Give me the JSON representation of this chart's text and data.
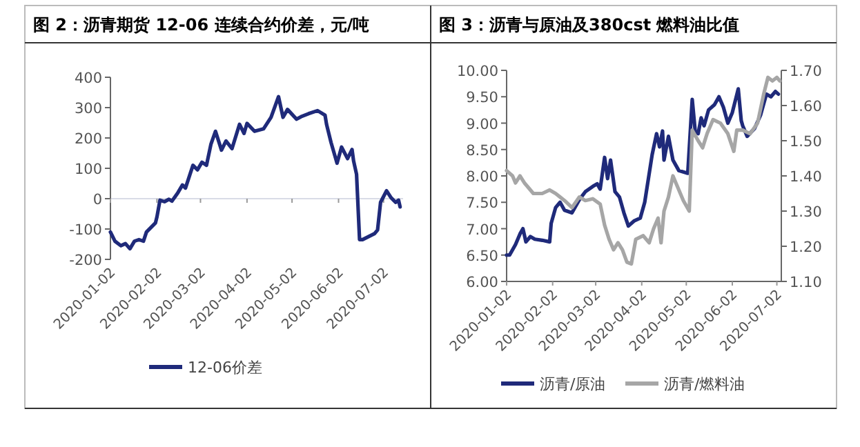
{
  "chart_data": [
    {
      "type": "line",
      "title": "图 2：沥青期货 12-06 连续合约价差，元/吨",
      "legend": "bottom",
      "xlim": [
        "2020-01-02",
        "2020-07-15"
      ],
      "xticks": [
        "2020-01-02",
        "2020-02-02",
        "2020-03-02",
        "2020-04-02",
        "2020-05-02",
        "2020-06-02",
        "2020-07-02"
      ],
      "ylim": [
        -200,
        400
      ],
      "yticks": [
        -200,
        -100,
        0,
        100,
        200,
        300,
        400
      ],
      "ref_lines": [
        {
          "axis": "y",
          "value": 0,
          "color": "#d9dce6"
        }
      ],
      "series": [
        {
          "name": "12-06价差",
          "color": "#1f2a7a",
          "x": [
            "2020-01-02",
            "2020-01-05",
            "2020-01-09",
            "2020-01-12",
            "2020-01-15",
            "2020-01-18",
            "2020-01-21",
            "2020-01-24",
            "2020-01-26",
            "2020-02-01",
            "2020-02-02",
            "2020-02-04",
            "2020-02-07",
            "2020-02-10",
            "2020-02-12",
            "2020-02-16",
            "2020-02-19",
            "2020-02-21",
            "2020-02-26",
            "2020-02-29",
            "2020-03-03",
            "2020-03-06",
            "2020-03-09",
            "2020-03-12",
            "2020-03-16",
            "2020-03-19",
            "2020-03-23",
            "2020-03-28",
            "2020-03-31",
            "2020-04-02",
            "2020-04-07",
            "2020-04-13",
            "2020-04-18",
            "2020-04-23",
            "2020-04-26",
            "2020-04-29",
            "2020-05-05",
            "2020-05-08",
            "2020-05-13",
            "2020-05-19",
            "2020-05-24",
            "2020-05-25",
            "2020-05-28",
            "2020-06-01",
            "2020-06-04",
            "2020-06-08",
            "2020-06-11",
            "2020-06-12",
            "2020-06-14",
            "2020-06-16",
            "2020-06-18",
            "2020-06-26",
            "2020-06-28",
            "2020-06-30",
            "2020-07-04",
            "2020-07-07",
            "2020-07-10",
            "2020-07-12",
            "2020-07-13"
          ],
          "values": [
            -110,
            -140,
            -155,
            -148,
            -165,
            -140,
            -135,
            -140,
            -110,
            -80,
            -60,
            -5,
            -10,
            -2,
            -8,
            20,
            45,
            35,
            110,
            95,
            120,
            110,
            180,
            222,
            160,
            190,
            165,
            245,
            215,
            248,
            222,
            230,
            268,
            336,
            268,
            294,
            262,
            270,
            280,
            290,
            275,
            245,
            185,
            117,
            170,
            132,
            162,
            125,
            80,
            -135,
            -135,
            -115,
            -103,
            -12,
            26,
            3,
            -12,
            -5,
            -27
          ]
        }
      ]
    },
    {
      "type": "line",
      "title": "图 3：沥青与原油及380cst 燃料油比值",
      "legend": "bottom",
      "xlim": [
        "2020-01-02",
        "2020-07-05"
      ],
      "xticks": [
        "2020-01-02",
        "2020-02-02",
        "2020-03-02",
        "2020-04-02",
        "2020-05-02",
        "2020-06-02",
        "2020-07-02"
      ],
      "ylim": [
        6,
        10
      ],
      "yticks": [
        {
          "value": 6,
          "label": "6.00"
        },
        {
          "value": 6.5,
          "label": "6.50"
        },
        {
          "value": 7,
          "label": "7.00"
        },
        {
          "value": 7.5,
          "label": "7.50"
        },
        {
          "value": 8,
          "label": "8.00"
        },
        {
          "value": 8.5,
          "label": "8.50"
        },
        {
          "value": 9,
          "label": "9.00"
        },
        {
          "value": 9.5,
          "label": "9.50"
        },
        {
          "value": 10,
          "label": "10.00"
        }
      ],
      "y2lim": [
        1.1,
        1.7
      ],
      "y2ticks": [
        {
          "value": 1.1,
          "label": "1.10"
        },
        {
          "value": 1.2,
          "label": "1.20"
        },
        {
          "value": 1.3,
          "label": "1.30"
        },
        {
          "value": 1.4,
          "label": "1.40"
        },
        {
          "value": 1.5,
          "label": "1.50"
        },
        {
          "value": 1.6,
          "label": "1.60"
        },
        {
          "value": 1.7,
          "label": "1.70"
        }
      ],
      "series": [
        {
          "name": "沥青/原油",
          "color": "#1f2a7a",
          "x": [
            "2020-01-02",
            "2020-01-04",
            "2020-01-08",
            "2020-01-11",
            "2020-01-13",
            "2020-01-15",
            "2020-01-18",
            "2020-01-21",
            "2020-01-26",
            "2020-01-31",
            "2020-02-01",
            "2020-02-04",
            "2020-02-07",
            "2020-02-10",
            "2020-02-15",
            "2020-02-20",
            "2020-02-24",
            "2020-02-29",
            "2020-03-03",
            "2020-03-05",
            "2020-03-08",
            "2020-03-10",
            "2020-03-12",
            "2020-03-15",
            "2020-03-18",
            "2020-03-21",
            "2020-03-24",
            "2020-03-28",
            "2020-04-01",
            "2020-04-04",
            "2020-04-09",
            "2020-04-12",
            "2020-04-14",
            "2020-04-16",
            "2020-04-17",
            "2020-04-20",
            "2020-04-23",
            "2020-04-27",
            "2020-05-03",
            "2020-05-06",
            "2020-05-08",
            "2020-05-10",
            "2020-05-12",
            "2020-05-14",
            "2020-05-17",
            "2020-05-21",
            "2020-05-24",
            "2020-05-27",
            "2020-05-30",
            "2020-06-02",
            "2020-06-06",
            "2020-06-08",
            "2020-06-09",
            "2020-06-12",
            "2020-06-17",
            "2020-06-21",
            "2020-06-25",
            "2020-06-28",
            "2020-07-01",
            "2020-07-03"
          ],
          "values": [
            6.5,
            6.5,
            6.7,
            6.9,
            7.0,
            6.75,
            6.85,
            6.8,
            6.78,
            6.75,
            7.1,
            7.4,
            7.5,
            7.35,
            7.3,
            7.55,
            7.7,
            7.8,
            7.85,
            7.75,
            8.35,
            7.95,
            8.3,
            7.7,
            7.6,
            7.3,
            7.05,
            7.15,
            7.2,
            7.5,
            8.4,
            8.8,
            8.55,
            8.85,
            8.3,
            8.75,
            8.3,
            8.1,
            8.05,
            9.45,
            8.85,
            8.8,
            9.1,
            8.95,
            9.25,
            9.35,
            9.5,
            9.3,
            9.0,
            9.2,
            9.65,
            9.05,
            8.95,
            8.75,
            8.9,
            9.15,
            9.55,
            9.5,
            9.6,
            9.55
          ]
        },
        {
          "name": "沥青/燃料油",
          "color": "#a6a6a6",
          "axis": "y2",
          "x": [
            "2020-01-02",
            "2020-01-06",
            "2020-01-08",
            "2020-01-11",
            "2020-01-14",
            "2020-01-16",
            "2020-01-20",
            "2020-01-26",
            "2020-01-31",
            "2020-02-04",
            "2020-02-07",
            "2020-02-10",
            "2020-02-15",
            "2020-02-20",
            "2020-02-24",
            "2020-02-29",
            "2020-03-05",
            "2020-03-08",
            "2020-03-11",
            "2020-03-14",
            "2020-03-17",
            "2020-03-20",
            "2020-03-23",
            "2020-03-26",
            "2020-03-29",
            "2020-04-03",
            "2020-04-07",
            "2020-04-10",
            "2020-04-13",
            "2020-04-15",
            "2020-04-17",
            "2020-04-20",
            "2020-04-23",
            "2020-04-26",
            "2020-04-30",
            "2020-05-04",
            "2020-05-06",
            "2020-05-10",
            "2020-05-13",
            "2020-05-16",
            "2020-05-20",
            "2020-05-25",
            "2020-05-30",
            "2020-06-03",
            "2020-06-05",
            "2020-06-09",
            "2020-06-14",
            "2020-06-19",
            "2020-06-23",
            "2020-06-26",
            "2020-06-29",
            "2020-07-02",
            "2020-07-04"
          ],
          "values": [
            1.415,
            1.4,
            1.38,
            1.4,
            1.38,
            1.37,
            1.35,
            1.35,
            1.36,
            1.35,
            1.34,
            1.33,
            1.31,
            1.34,
            1.33,
            1.335,
            1.32,
            1.26,
            1.22,
            1.19,
            1.21,
            1.19,
            1.155,
            1.15,
            1.22,
            1.23,
            1.21,
            1.25,
            1.28,
            1.21,
            1.3,
            1.34,
            1.4,
            1.37,
            1.33,
            1.3,
            1.53,
            1.5,
            1.48,
            1.52,
            1.56,
            1.55,
            1.52,
            1.47,
            1.53,
            1.53,
            1.52,
            1.55,
            1.63,
            1.68,
            1.67,
            1.68,
            1.67
          ]
        }
      ]
    }
  ]
}
